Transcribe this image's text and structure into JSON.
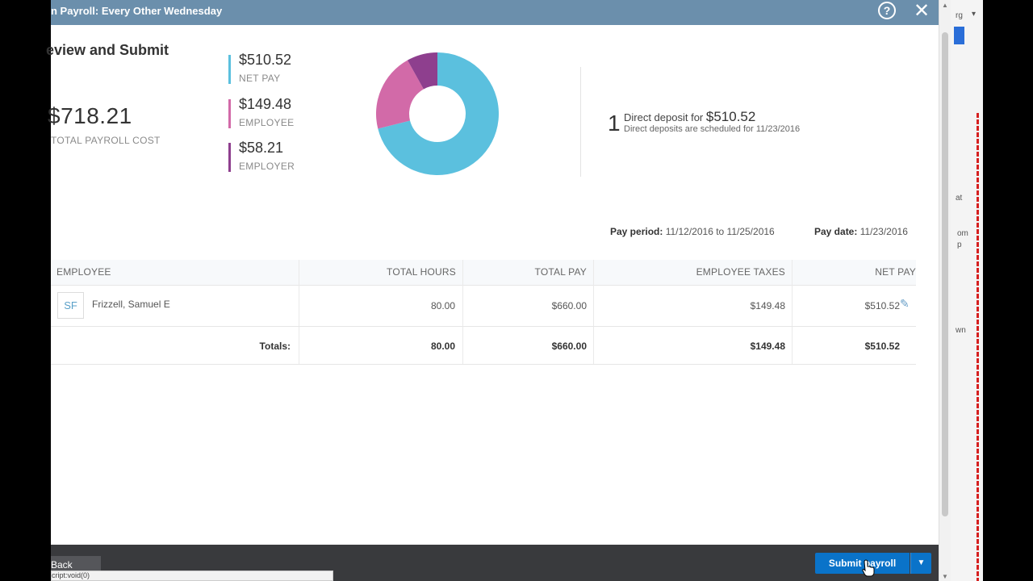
{
  "modal": {
    "title": "n Payroll: Every Other Wednesday",
    "help_glyph": "?",
    "close_glyph": "✕"
  },
  "summary": {
    "heading": "eview and Submit",
    "total_cost": "$718.21",
    "total_cost_label": "TOTAL PAYROLL COST",
    "legend": [
      {
        "amount": "$510.52",
        "label": "NET PAY",
        "color": "#5bc0de"
      },
      {
        "amount": "$149.48",
        "label": "EMPLOYEE",
        "color": "#d26aa8"
      },
      {
        "amount": "$58.21",
        "label": "EMPLOYER",
        "color": "#8e3f8e"
      }
    ]
  },
  "chart_data": {
    "type": "pie",
    "categories": [
      "NET PAY",
      "EMPLOYEE",
      "EMPLOYER"
    ],
    "values": [
      510.52,
      149.48,
      58.21
    ],
    "colors": [
      "#5bc0de",
      "#d26aa8",
      "#8e3f8e"
    ],
    "donut": true
  },
  "direct_deposit": {
    "count": "1",
    "text": "Direct deposit for",
    "amount": "$510.52",
    "scheduled": "Direct deposits are scheduled for 11/23/2016"
  },
  "period": {
    "pay_period_label": "Pay period:",
    "pay_period_value": "11/12/2016 to 11/25/2016",
    "pay_date_label": "Pay date:",
    "pay_date_value": "11/23/2016"
  },
  "table": {
    "headers": [
      "EMPLOYEE",
      "TOTAL HOURS",
      "TOTAL PAY",
      "EMPLOYEE TAXES",
      "NET PAY"
    ],
    "rows": [
      {
        "initials": "SF",
        "name": "Frizzell, Samuel E",
        "hours": "80.00",
        "total_pay": "$660.00",
        "taxes": "$149.48",
        "net_pay": "$510.52"
      }
    ],
    "totals": {
      "label": "Totals:",
      "hours": "80.00",
      "total_pay": "$660.00",
      "taxes": "$149.48",
      "net_pay": "$510.52"
    }
  },
  "footer": {
    "back_label": "Back",
    "status_url": "cript:void(0)",
    "submit_label": "Submit payroll",
    "caret_glyph": "▼"
  },
  "background_page": {
    "snippets": [
      "rg",
      "at",
      "om",
      "p",
      "wn"
    ],
    "arrow_glyph": "▾"
  }
}
